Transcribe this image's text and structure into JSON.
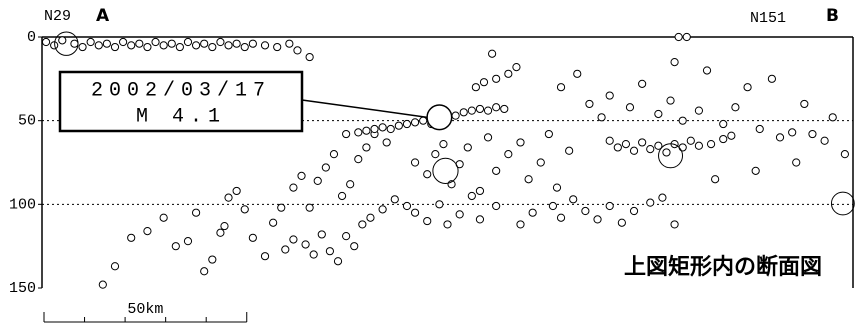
{
  "chart_data": {
    "type": "scatter",
    "labels": {
      "left_code": "N29",
      "left_end": "A",
      "right_code": "N151",
      "right_end": "B"
    },
    "caption": "上図矩形内の断面図",
    "xlim": [
      0,
      200
    ],
    "ylim": [
      0,
      150
    ],
    "y_inverted": true,
    "yticks": [
      0,
      50,
      100,
      150
    ],
    "grid": true,
    "scale_bar": {
      "label": "50km",
      "length": 50,
      "step": 10
    },
    "annotation": {
      "lines": [
        "2002/03/17",
        "M 4.1"
      ]
    },
    "series": [
      {
        "color": "#000000",
        "x": [
          1,
          3,
          5,
          8,
          10,
          12,
          14,
          16,
          18,
          20,
          22,
          24,
          26,
          28,
          30,
          32,
          34,
          36,
          38,
          40,
          42,
          44,
          46,
          48,
          50,
          52,
          55,
          58,
          61,
          63,
          66,
          15,
          18,
          22,
          26,
          30,
          33,
          36,
          38,
          40,
          42,
          44,
          45,
          46,
          48,
          50,
          52,
          55,
          57,
          59,
          62,
          64,
          66,
          68,
          70,
          72,
          74,
          76,
          78,
          80,
          82,
          85,
          60,
          62,
          65,
          67,
          69,
          71,
          73,
          75,
          77,
          79,
          81,
          84,
          87,
          90,
          75,
          78,
          80,
          82,
          84,
          86,
          88,
          90,
          92,
          94,
          96,
          100,
          102,
          104,
          106,
          108,
          110,
          112,
          114,
          107,
          109,
          112,
          115,
          117,
          111,
          92,
          95,
          97,
          99,
          101,
          103,
          105,
          108,
          110,
          112,
          115,
          118,
          120,
          123,
          125,
          127,
          130,
          92,
          95,
          98,
          100,
          103,
          106,
          108,
          112,
          118,
          121,
          126,
          128,
          131,
          134,
          137,
          140,
          143,
          146,
          150,
          153,
          156,
          140,
          142,
          144,
          146,
          148,
          150,
          152,
          154,
          156,
          158,
          160,
          162,
          165,
          168,
          170,
          128,
          132,
          135,
          138,
          140,
          145,
          148,
          152,
          155,
          158,
          162,
          164,
          168,
          171,
          174,
          177,
          180,
          182,
          185,
          188,
          190,
          193,
          195,
          198,
          186,
          176,
          166,
          156,
          157,
          159
        ],
        "y": [
          3,
          5,
          2,
          4,
          6,
          3,
          5,
          4,
          6,
          3,
          5,
          4,
          6,
          3,
          5,
          4,
          6,
          3,
          5,
          4,
          6,
          3,
          5,
          4,
          6,
          4,
          5,
          6,
          4,
          8,
          12,
          148,
          137,
          120,
          116,
          108,
          125,
          122,
          105,
          140,
          133,
          117,
          113,
          96,
          92,
          103,
          120,
          131,
          111,
          102,
          90,
          83,
          102,
          86,
          78,
          70,
          95,
          88,
          73,
          66,
          58,
          63,
          127,
          121,
          124,
          130,
          118,
          128,
          134,
          119,
          125,
          112,
          108,
          103,
          97,
          101,
          58,
          57,
          56,
          55,
          54,
          55,
          53,
          52,
          51,
          50,
          52,
          46,
          47,
          45,
          44,
          43,
          44,
          42,
          43,
          30,
          27,
          25,
          22,
          18,
          10,
          75,
          82,
          70,
          64,
          88,
          76,
          66,
          92,
          60,
          80,
          70,
          63,
          85,
          75,
          58,
          90,
          68,
          105,
          110,
          100,
          112,
          106,
          95,
          109,
          101,
          112,
          105,
          101,
          108,
          97,
          104,
          109,
          101,
          111,
          104,
          99,
          96,
          112,
          62,
          66,
          64,
          68,
          63,
          67,
          65,
          69,
          64,
          66,
          62,
          65,
          64,
          61,
          59,
          30,
          22,
          40,
          48,
          35,
          42,
          28,
          46,
          38,
          50,
          44,
          20,
          52,
          42,
          30,
          55,
          25,
          60,
          57,
          40,
          58,
          62,
          48,
          70,
          75,
          80,
          85,
          15,
          0,
          0
        ]
      },
      {
        "color": "#000000",
        "x": [
          6,
          98,
          99.5,
          155,
          197.5
        ],
        "y": [
          4,
          48,
          80,
          71,
          99.5
        ],
        "magnitude": [
          3.9,
          4.1,
          4.2,
          4.0,
          3.8
        ]
      }
    ]
  }
}
